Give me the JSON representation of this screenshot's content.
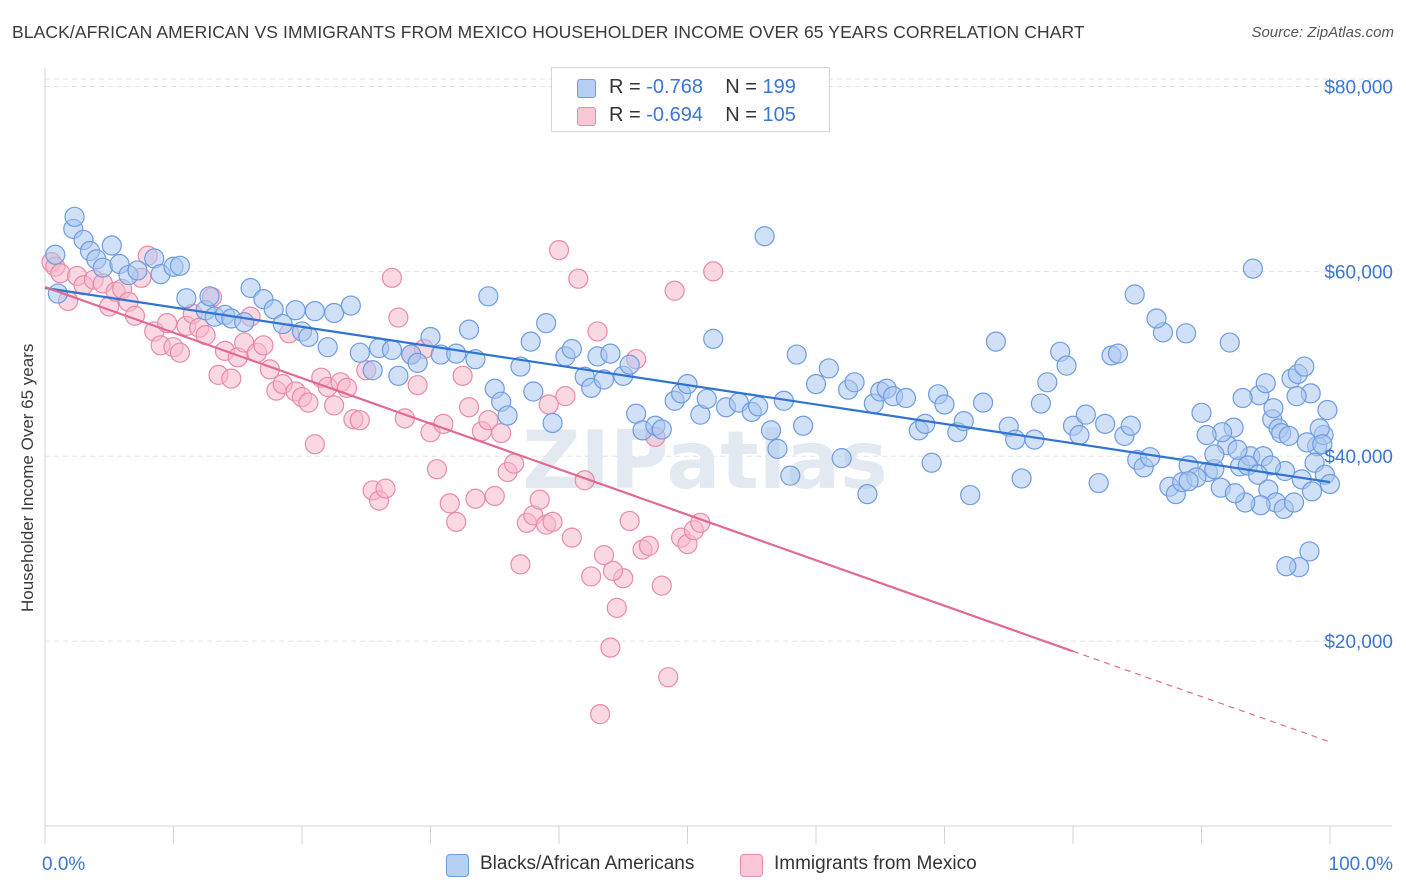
{
  "title": "BLACK/AFRICAN AMERICAN VS IMMIGRANTS FROM MEXICO HOUSEHOLDER INCOME OVER 65 YEARS CORRELATION CHART",
  "source": "Source: ZipAtlas.com",
  "watermark": "ZIPatlas",
  "legend": {
    "series1": {
      "r_label": "R =",
      "r_value": "-0.768",
      "n_label": "N =",
      "n_value": "199"
    },
    "series2": {
      "r_label": "R =",
      "r_value": "-0.694",
      "n_label": "N =",
      "n_value": "105"
    }
  },
  "bottom_legend": {
    "series1": "Blacks/African Americans",
    "series2": "Immigrants from Mexico"
  },
  "colors": {
    "blue_fill": "#a9c6f0",
    "blue_stroke": "#6e9ce0",
    "blue_line": "#2f74d0",
    "pink_fill": "#f6b8cb",
    "pink_stroke": "#e98aa8",
    "pink_line": "#e06a92",
    "tick_text": "#3b76d2"
  },
  "chart_data": {
    "type": "scatter",
    "title": "BLACK/AFRICAN AMERICAN VS IMMIGRANTS FROM MEXICO HOUSEHOLDER INCOME OVER 65 YEARS CORRELATION CHART",
    "xlabel": "",
    "ylabel": "Householder Income Over 65 years",
    "xlim": [
      0,
      100
    ],
    "ylim": [
      0,
      82000
    ],
    "x_tick_labels": [
      "0.0%",
      "100.0%"
    ],
    "y_ticks": [
      20000,
      40000,
      60000,
      80000
    ],
    "y_tick_labels": [
      "$20,000",
      "$40,000",
      "$60,000",
      "$80,000"
    ],
    "grid": true,
    "series": [
      {
        "name": "Blacks/African Americans",
        "r": -0.768,
        "n": 199,
        "trend": {
          "x0": 0,
          "y0": 58200,
          "x1": 100,
          "y1": 37200
        },
        "points": [
          [
            0.8,
            61.8
          ],
          [
            1,
            57.6
          ],
          [
            2.2,
            64.6
          ],
          [
            2.3,
            65.9
          ],
          [
            3,
            63.4
          ],
          [
            3.5,
            62.2
          ],
          [
            4,
            61.3
          ],
          [
            4.5,
            60.4
          ],
          [
            5.2,
            62.8
          ],
          [
            5.8,
            60.8
          ],
          [
            6.5,
            59.6
          ],
          [
            7.2,
            60.1
          ],
          [
            8.5,
            61.4
          ],
          [
            9,
            59.7
          ],
          [
            10,
            60.5
          ],
          [
            10.5,
            60.6
          ],
          [
            11,
            57.1
          ],
          [
            12.5,
            55.8
          ],
          [
            12.8,
            57.3
          ],
          [
            13.2,
            55.1
          ],
          [
            14,
            55.3
          ],
          [
            14.5,
            54.9
          ],
          [
            15.5,
            54.5
          ],
          [
            16,
            58.2
          ],
          [
            17,
            57.0
          ],
          [
            17.8,
            55.9
          ],
          [
            18.5,
            54.3
          ],
          [
            19.5,
            55.8
          ],
          [
            20,
            53.5
          ],
          [
            20.5,
            52.9
          ],
          [
            21,
            55.7
          ],
          [
            22,
            51.8
          ],
          [
            22.5,
            55.5
          ],
          [
            23.8,
            56.3
          ],
          [
            24.5,
            51.2
          ],
          [
            25.5,
            49.3
          ],
          [
            26,
            51.7
          ],
          [
            27,
            51.5
          ],
          [
            27.5,
            48.7
          ],
          [
            28.5,
            51.0
          ],
          [
            29,
            50.1
          ],
          [
            30,
            52.9
          ],
          [
            30.8,
            51.0
          ],
          [
            32,
            51.1
          ],
          [
            33,
            53.7
          ],
          [
            33.5,
            50.5
          ],
          [
            34.5,
            57.3
          ],
          [
            35,
            47.3
          ],
          [
            35.5,
            45.9
          ],
          [
            36,
            44.4
          ],
          [
            37,
            49.7
          ],
          [
            37.8,
            52.4
          ],
          [
            38,
            47.0
          ],
          [
            39,
            54.4
          ],
          [
            39.5,
            43.6
          ],
          [
            40.5,
            50.8
          ],
          [
            41,
            51.6
          ],
          [
            42,
            48.6
          ],
          [
            42.5,
            47.4
          ],
          [
            43,
            50.8
          ],
          [
            43.5,
            48.3
          ],
          [
            44,
            51.1
          ],
          [
            45,
            48.7
          ],
          [
            45.5,
            49.9
          ],
          [
            46,
            44.6
          ],
          [
            46.5,
            42.8
          ],
          [
            47.5,
            43.3
          ],
          [
            48,
            42.9
          ],
          [
            49,
            46.0
          ],
          [
            49.5,
            46.8
          ],
          [
            50,
            47.8
          ],
          [
            51,
            44.5
          ],
          [
            51.5,
            46.2
          ],
          [
            52,
            52.7
          ],
          [
            53,
            45.3
          ],
          [
            54,
            45.8
          ],
          [
            55,
            44.8
          ],
          [
            55.5,
            45.4
          ],
          [
            56,
            63.8
          ],
          [
            56.5,
            42.8
          ],
          [
            57,
            40.8
          ],
          [
            57.5,
            46.0
          ],
          [
            58,
            37.9
          ],
          [
            58.5,
            51.0
          ],
          [
            59,
            43.3
          ],
          [
            60,
            47.8
          ],
          [
            61,
            49.5
          ],
          [
            62,
            39.8
          ],
          [
            62.5,
            47.2
          ],
          [
            63,
            48.0
          ],
          [
            64,
            35.9
          ],
          [
            64.5,
            45.7
          ],
          [
            65,
            47.0
          ],
          [
            65.5,
            47.3
          ],
          [
            66,
            46.5
          ],
          [
            67,
            46.3
          ],
          [
            68,
            42.8
          ],
          [
            68.5,
            43.5
          ],
          [
            69,
            39.3
          ],
          [
            69.5,
            46.7
          ],
          [
            70,
            45.6
          ],
          [
            71,
            42.6
          ],
          [
            71.5,
            43.8
          ],
          [
            72,
            35.8
          ],
          [
            73,
            45.8
          ],
          [
            74,
            52.4
          ],
          [
            75,
            43.2
          ],
          [
            75.5,
            41.8
          ],
          [
            76,
            37.6
          ],
          [
            77,
            41.8
          ],
          [
            77.5,
            45.7
          ],
          [
            78,
            48.0
          ],
          [
            79,
            51.3
          ],
          [
            79.5,
            49.8
          ],
          [
            80,
            43.3
          ],
          [
            80.5,
            42.3
          ],
          [
            81,
            44.5
          ],
          [
            82,
            37.1
          ],
          [
            82.5,
            43.5
          ],
          [
            83,
            50.9
          ],
          [
            83.5,
            51.1
          ],
          [
            84,
            42.2
          ],
          [
            84.5,
            43.3
          ],
          [
            85,
            39.6
          ],
          [
            85.5,
            38.8
          ],
          [
            86,
            39.9
          ],
          [
            87,
            53.4
          ],
          [
            87.5,
            36.7
          ],
          [
            88,
            35.9
          ],
          [
            88.5,
            37.2
          ],
          [
            89,
            39.0
          ],
          [
            90,
            44.7
          ],
          [
            90.5,
            38.3
          ],
          [
            91,
            38.6
          ],
          [
            91.5,
            36.6
          ],
          [
            92,
            41.2
          ],
          [
            92.5,
            43.1
          ],
          [
            93,
            38.9
          ],
          [
            94,
            60.3
          ],
          [
            94.5,
            46.6
          ],
          [
            95,
            47.9
          ],
          [
            95.5,
            44.0
          ],
          [
            96,
            43.0
          ],
          [
            96.5,
            38.4
          ],
          [
            97,
            48.4
          ],
          [
            97.5,
            48.9
          ],
          [
            98,
            49.7
          ],
          [
            98.5,
            46.8
          ],
          [
            99,
            41.1
          ],
          [
            99.5,
            42.3
          ],
          [
            84.8,
            57.5
          ],
          [
            86.5,
            54.9
          ],
          [
            88.8,
            53.3
          ],
          [
            92.2,
            52.3
          ],
          [
            93.2,
            46.3
          ],
          [
            93.8,
            40.0
          ],
          [
            94.8,
            40.0
          ],
          [
            95.4,
            39.0
          ],
          [
            96.2,
            42.5
          ],
          [
            96.8,
            42.2
          ],
          [
            97.4,
            46.5
          ],
          [
            98.2,
            41.5
          ],
          [
            98.8,
            39.3
          ],
          [
            99.2,
            43.0
          ],
          [
            99.6,
            38.0
          ],
          [
            100,
            37.0
          ],
          [
            91.6,
            42.6
          ],
          [
            90.4,
            42.3
          ],
          [
            89.6,
            37.7
          ],
          [
            89,
            37.3
          ],
          [
            91,
            40.2
          ],
          [
            92.8,
            40.7
          ],
          [
            93.6,
            39.0
          ],
          [
            94.4,
            38.0
          ],
          [
            95.2,
            36.4
          ],
          [
            95.8,
            35.0
          ],
          [
            96.4,
            34.3
          ],
          [
            97.2,
            35.0
          ],
          [
            97.8,
            37.5
          ],
          [
            98.4,
            29.7
          ],
          [
            99.8,
            45.0
          ],
          [
            99.4,
            41.3
          ],
          [
            98.6,
            36.2
          ],
          [
            97.6,
            28.0
          ],
          [
            96.6,
            28.1
          ],
          [
            95.6,
            45.2
          ],
          [
            94.6,
            34.7
          ],
          [
            93.4,
            35.0
          ],
          [
            92.6,
            36.0
          ]
        ]
      },
      {
        "name": "Immigrants from Mexico",
        "r": -0.694,
        "n": 105,
        "trend": {
          "x0": 0,
          "y0": 58300,
          "x1": 80,
          "y1": 18900,
          "dash_x1": 100,
          "dash_y1": 9100
        },
        "points": [
          [
            0.5,
            61.0
          ],
          [
            0.8,
            60.5
          ],
          [
            1.2,
            59.8
          ],
          [
            1.8,
            56.8
          ],
          [
            2.5,
            59.5
          ],
          [
            3,
            58.5
          ],
          [
            3.8,
            59.1
          ],
          [
            4.5,
            58.7
          ],
          [
            5,
            56.2
          ],
          [
            5.5,
            57.8
          ],
          [
            6,
            58.1
          ],
          [
            6.5,
            56.7
          ],
          [
            7,
            55.2
          ],
          [
            7.5,
            59.3
          ],
          [
            8,
            61.7
          ],
          [
            8.5,
            53.5
          ],
          [
            9,
            52.0
          ],
          [
            9.5,
            54.4
          ],
          [
            10,
            51.8
          ],
          [
            10.5,
            51.2
          ],
          [
            11,
            54.1
          ],
          [
            11.5,
            55.4
          ],
          [
            12,
            53.9
          ],
          [
            12.5,
            53.1
          ],
          [
            13,
            57.2
          ],
          [
            13.5,
            48.8
          ],
          [
            14,
            51.4
          ],
          [
            14.5,
            48.4
          ],
          [
            15,
            50.7
          ],
          [
            15.5,
            52.3
          ],
          [
            16,
            55.1
          ],
          [
            16.5,
            51.2
          ],
          [
            17,
            52.0
          ],
          [
            17.5,
            49.4
          ],
          [
            18,
            47.1
          ],
          [
            18.5,
            47.8
          ],
          [
            19,
            53.3
          ],
          [
            19.5,
            47.0
          ],
          [
            20,
            46.4
          ],
          [
            20.5,
            45.8
          ],
          [
            21,
            41.3
          ],
          [
            21.5,
            48.5
          ],
          [
            22,
            47.5
          ],
          [
            22.5,
            45.5
          ],
          [
            23,
            48.0
          ],
          [
            23.5,
            47.4
          ],
          [
            24,
            44.0
          ],
          [
            24.5,
            43.9
          ],
          [
            25,
            49.3
          ],
          [
            25.5,
            36.3
          ],
          [
            26,
            35.2
          ],
          [
            26.5,
            36.5
          ],
          [
            27,
            59.3
          ],
          [
            27.5,
            55.0
          ],
          [
            28,
            44.1
          ],
          [
            28.5,
            51.0
          ],
          [
            29,
            47.7
          ],
          [
            29.5,
            51.6
          ],
          [
            30,
            42.6
          ],
          [
            30.5,
            38.6
          ],
          [
            31,
            43.5
          ],
          [
            31.5,
            34.9
          ],
          [
            32,
            32.9
          ],
          [
            32.5,
            48.7
          ],
          [
            33,
            45.3
          ],
          [
            33.5,
            35.4
          ],
          [
            34,
            42.7
          ],
          [
            34.5,
            43.9
          ],
          [
            35,
            35.7
          ],
          [
            35.5,
            42.5
          ],
          [
            36,
            38.3
          ],
          [
            36.5,
            39.2
          ],
          [
            37,
            28.3
          ],
          [
            37.5,
            32.8
          ],
          [
            38,
            33.6
          ],
          [
            38.5,
            35.3
          ],
          [
            39,
            32.6
          ],
          [
            39.5,
            32.9
          ],
          [
            40,
            62.3
          ],
          [
            40.5,
            46.5
          ],
          [
            41,
            31.2
          ],
          [
            41.5,
            59.2
          ],
          [
            42,
            37.4
          ],
          [
            42.5,
            27.0
          ],
          [
            43,
            53.5
          ],
          [
            43.5,
            29.3
          ],
          [
            44,
            19.3
          ],
          [
            44.5,
            23.6
          ],
          [
            45,
            26.8
          ],
          [
            45.5,
            33.0
          ],
          [
            46,
            50.5
          ],
          [
            46.5,
            29.9
          ],
          [
            47,
            30.3
          ],
          [
            47.5,
            42.1
          ],
          [
            48,
            26.0
          ],
          [
            48.5,
            16.1
          ],
          [
            49,
            57.9
          ],
          [
            49.5,
            31.2
          ],
          [
            50,
            30.5
          ],
          [
            50.5,
            32.0
          ],
          [
            51,
            32.8
          ],
          [
            52,
            60.0
          ],
          [
            43.2,
            12.1
          ],
          [
            44.2,
            27.6
          ],
          [
            39.2,
            45.6
          ]
        ]
      }
    ]
  }
}
